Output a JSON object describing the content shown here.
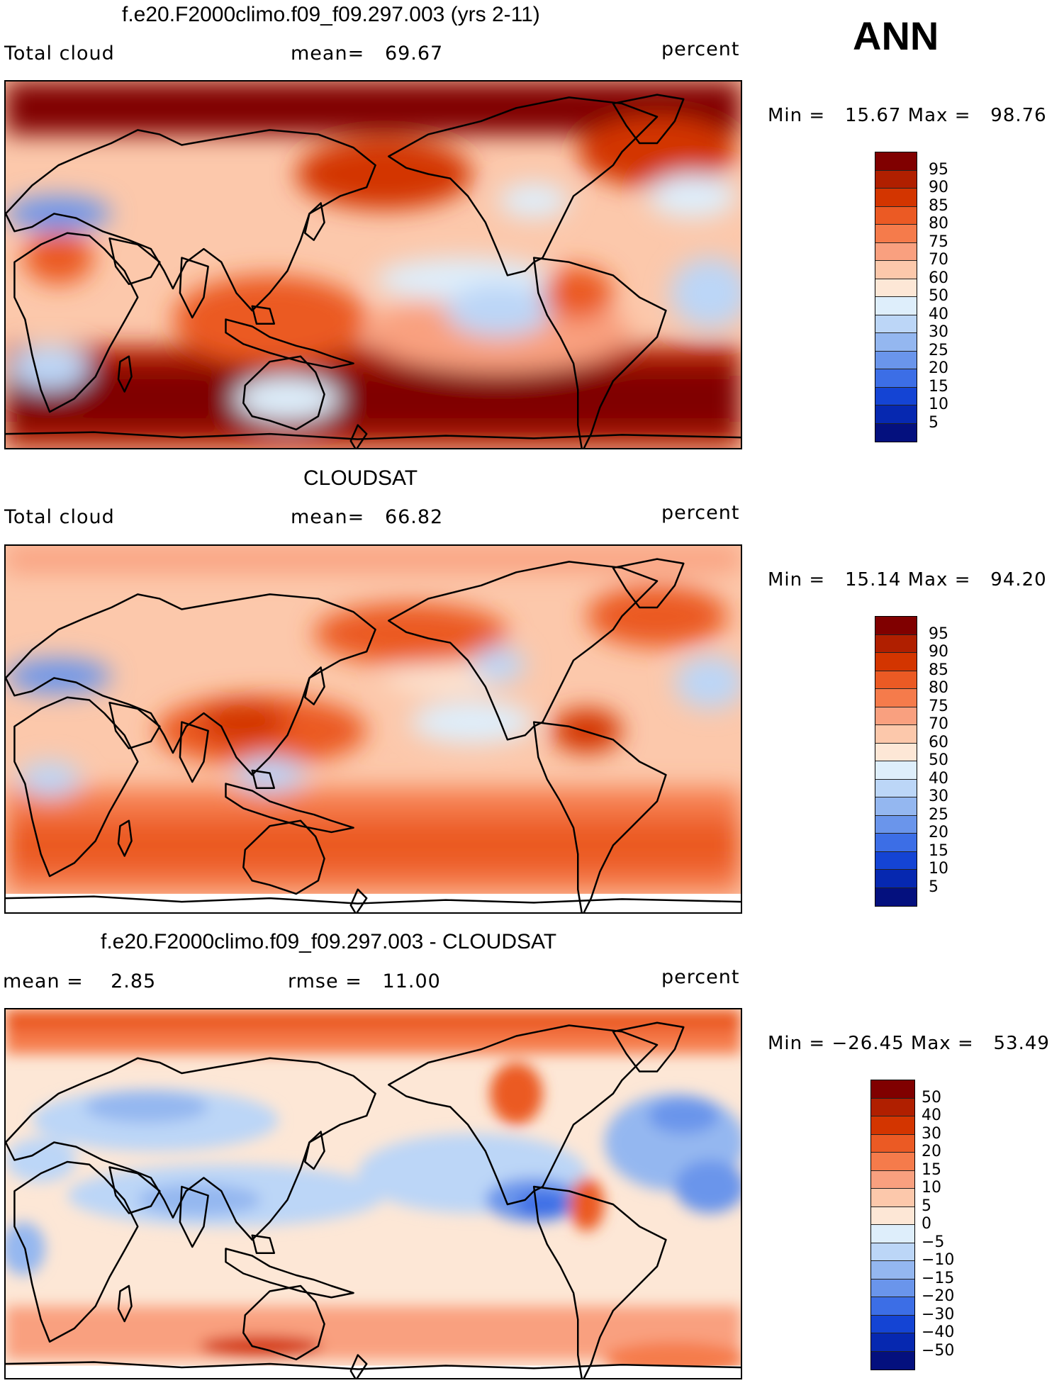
{
  "season": "ANN",
  "panels": [
    {
      "title": "f.e20.F2000climo.f09_f09.297.003 (yrs 2-11)",
      "left_label": "Total cloud",
      "center_label": "mean=   69.67",
      "units": "percent",
      "min_max": "Min =   15.67 Max =   98.76",
      "colorbar_ticks": [
        "95",
        "90",
        "85",
        "80",
        "75",
        "70",
        "60",
        "50",
        "40",
        "30",
        "25",
        "20",
        "15",
        "10",
        "5"
      ]
    },
    {
      "title": "CLOUDSAT",
      "left_label": "Total cloud",
      "center_label": "mean=   66.82",
      "units": "percent",
      "min_max": "Min =   15.14 Max =   94.20",
      "colorbar_ticks": [
        "95",
        "90",
        "85",
        "80",
        "75",
        "70",
        "60",
        "50",
        "40",
        "30",
        "25",
        "20",
        "15",
        "10",
        "5"
      ]
    },
    {
      "title": "f.e20.F2000climo.f09_f09.297.003 - CLOUDSAT",
      "left_label": "mean =    2.85",
      "center_label": "rmse =   11.00",
      "units": "percent",
      "min_max": "Min = −26.45 Max =   53.49",
      "colorbar_ticks": [
        "50",
        "40",
        "30",
        "20",
        "15",
        "10",
        "5",
        "0",
        "−5",
        "−10",
        "−15",
        "−20",
        "−30",
        "−40",
        "−50"
      ]
    }
  ],
  "colorbar_colors": [
    "#800000",
    "#b01f00",
    "#d33500",
    "#eb5a24",
    "#f57b4b",
    "#f9a07f",
    "#fcc8ab",
    "#fde7d6",
    "#deeefb",
    "#bcd6f7",
    "#94b7f0",
    "#6a95eb",
    "#3c6ee6",
    "#1444d4",
    "#0628b0",
    "#04107e"
  ]
}
